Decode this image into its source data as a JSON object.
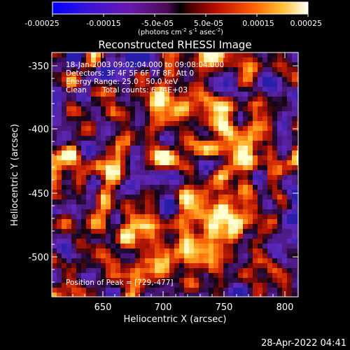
{
  "colorbar": {
    "tick_labels": [
      "-0.00025",
      "-0.00015",
      "-5.0e-05",
      "5.0e-05",
      "0.00015",
      "0.00025"
    ],
    "units_prefix": "(photons cm",
    "units_exp1": "-2",
    "units_mid": " s",
    "units_exp2": "-1",
    "units_suffix": " asec",
    "units_exp3": "-2",
    "units_close": ")",
    "range": [
      -0.00025,
      0.00025
    ]
  },
  "title": "Reconstructed RHESSI Image",
  "info": {
    "line1": "18-Jan-2003 09:02:04.000 to 09:08:04.000",
    "line2": "Detectors: 3F 4F 5F 6F 7F 8F, Att 0",
    "line3": "Energy Range: 25.0 - 50.0 keV",
    "line4_algo": "Clean",
    "line4_counts": "Total counts: 6.74E+03",
    "peak": "Position of Peak = [729,-477]"
  },
  "axes": {
    "xlabel": "Heliocentric X (arcsec)",
    "ylabel": "Heliocentric Y (arcsec)",
    "xticks": [
      "650",
      "700",
      "750",
      "800"
    ],
    "yticks": [
      "-350",
      "-400",
      "-450",
      "-500"
    ]
  },
  "footer": {
    "timestamp": "28-Apr-2022 04:41"
  },
  "colors": {
    "background": "#000000",
    "text": "#ffffff"
  }
}
